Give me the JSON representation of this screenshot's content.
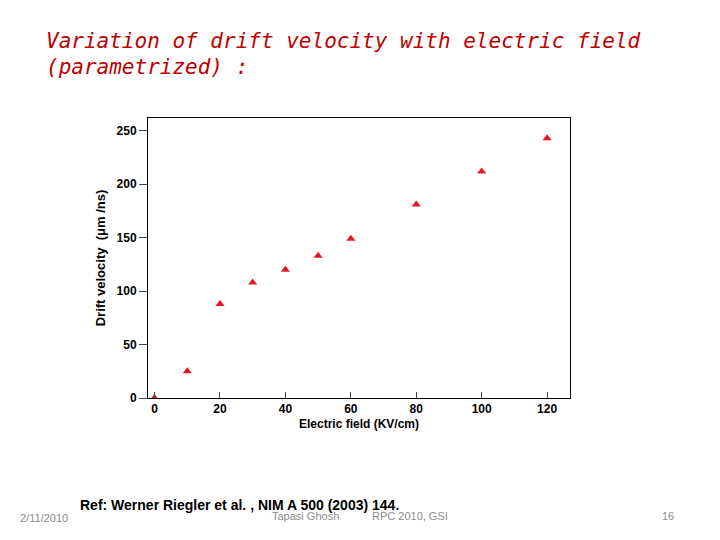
{
  "slide": {
    "title": [
      "Variation of drift velocity with electric field",
      "(parametrized) :"
    ],
    "reference": "Ref: Werner Riegler et al. , NIM A 500 (2003) 144.",
    "date": "2/11/2010",
    "author": "Tapasi Ghosh",
    "event": "RPC 2010, GSI",
    "page": "16"
  },
  "chart_data": {
    "type": "scatter",
    "x_label": "Electric field (KV/cm)",
    "y_label": "Drift velocity  (μm /ns)",
    "x": [
      0,
      10,
      20,
      30,
      40,
      50,
      60,
      80,
      100,
      120
    ],
    "values": [
      0,
      25,
      88,
      108,
      120,
      133,
      149,
      181,
      212,
      243
    ],
    "color": "#e31a1c",
    "marker": "triangle-up",
    "xlim": [
      -2,
      127
    ],
    "xticks": [
      0,
      20,
      40,
      60,
      80,
      100,
      120
    ],
    "ylim": [
      0,
      262
    ],
    "yticks": [
      0,
      50,
      100,
      150,
      200,
      250
    ],
    "grid": false
  }
}
